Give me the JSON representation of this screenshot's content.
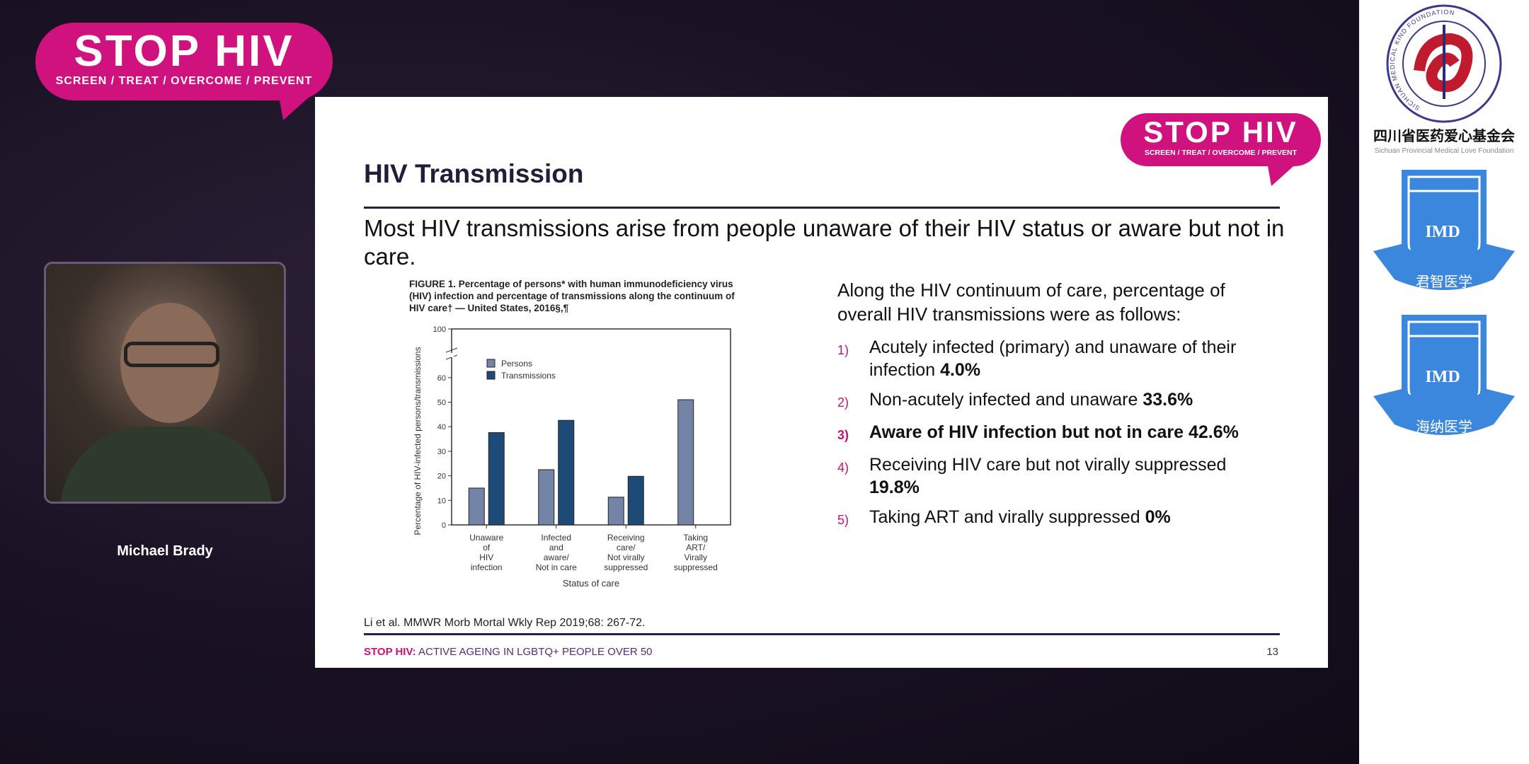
{
  "brand": {
    "logo_title": "STOP HIV",
    "logo_tagline": "SCREEN / TREAT / OVERCOME / PREVENT",
    "accent": "#d0127f"
  },
  "slide": {
    "title": "HIV Transmission",
    "subtitle": "Most HIV transmissions arise from people unaware of their HIV status or aware but not in care.",
    "figure_caption": "FIGURE 1. Percentage of persons* with human immunodeficiency virus (HIV) infection and percentage of transmissions along the continuum of HIV care† — United States, 2016§,¶",
    "intro": "Along the HIV continuum of care, percentage of overall HIV transmissions were as follows:",
    "items": [
      {
        "num": "1)",
        "text": "Acutely infected (primary) and unaware of their infection ",
        "value": "4.0%",
        "highlight": false
      },
      {
        "num": "2)",
        "text": "Non-acutely infected and unaware ",
        "value": "33.6%",
        "highlight": false
      },
      {
        "num": "3)",
        "text": "Aware of HIV infection but not in care ",
        "value": "42.6%",
        "highlight": true
      },
      {
        "num": "4)",
        "text": "Receiving HIV care but not virally suppressed ",
        "value": "19.8%",
        "highlight": false
      },
      {
        "num": "5)",
        "text": "Taking ART and virally suppressed ",
        "value": "0%",
        "highlight": false
      }
    ],
    "citation": "Li et al. MMWR Morb Mortal Wkly Rep 2019;68: 267-72.",
    "footer_brand": "STOP HIV:",
    "footer_text": " ACTIVE AGEING IN LGBTQ+ PEOPLE OVER 50",
    "page_number": "13"
  },
  "chart_data": {
    "type": "bar",
    "categories": [
      [
        "Unaware",
        "of",
        "HIV",
        "infection"
      ],
      [
        "Infected",
        "and",
        "aware/",
        "Not in care"
      ],
      [
        "Receiving",
        "care/",
        "Not virally",
        "suppressed"
      ],
      [
        "Taking",
        "ART/",
        "Virally",
        "suppressed"
      ]
    ],
    "series": [
      {
        "name": "Persons",
        "values": [
          15,
          22.5,
          11.3,
          51
        ],
        "color": "#7384a6"
      },
      {
        "name": "Transmissions",
        "values": [
          37.6,
          42.6,
          19.8,
          0
        ],
        "color": "#1e4a78"
      }
    ],
    "ylabel": "Percentage of HIV-infected persons/transmissions",
    "xlabel": "Status of care",
    "yticks": [
      0,
      10,
      20,
      30,
      40,
      50,
      60,
      100
    ],
    "ylim": [
      0,
      100
    ],
    "axis_break": true,
    "legend": "top-left"
  },
  "presenter": {
    "name": "Michael Brady"
  },
  "sponsors": {
    "foundation_cn": "四川省医药爱心基金会",
    "foundation_en": "Sichuan Provincial Medical Love Foundation",
    "foundation_ring": "SICHUAN MEDICAL KIND FOUNDATION",
    "imd_text": "IMD",
    "imd1_cn": "君智医学",
    "imd2_cn": "海纳医学"
  }
}
